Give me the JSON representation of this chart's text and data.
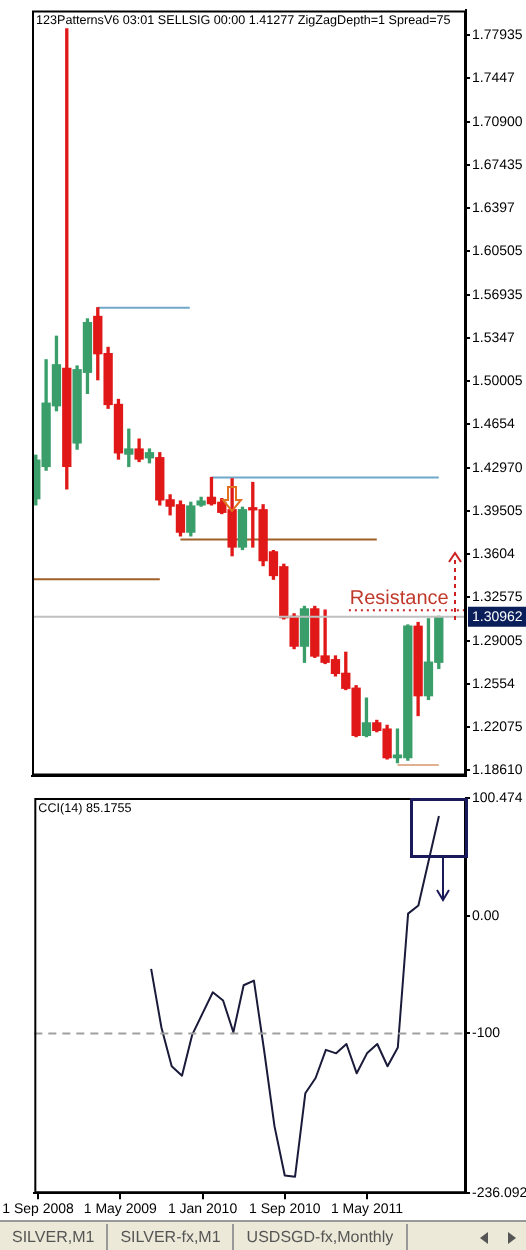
{
  "chart_data": [
    {
      "type": "candlestick",
      "title": "123PatternsV6 03:01 SELLSIG 00:00 1.41277 ZigZagDepth=1 Spread=75",
      "x": [
        "2008-09",
        "2008-10",
        "2008-11",
        "2008-12",
        "2009-01",
        "2009-02",
        "2009-03",
        "2009-04",
        "2009-05",
        "2009-06",
        "2009-07",
        "2009-08",
        "2009-09",
        "2009-10",
        "2009-11",
        "2009-12",
        "2010-01",
        "2010-02",
        "2010-03",
        "2010-04",
        "2010-05",
        "2010-06",
        "2010-07",
        "2010-08",
        "2010-09",
        "2010-10",
        "2010-11",
        "2010-12",
        "2011-01",
        "2011-02",
        "2011-03",
        "2011-04",
        "2011-05",
        "2011-06",
        "2011-07",
        "2011-08",
        "2011-09",
        "2011-10",
        "2011-11",
        "2011-12"
      ],
      "ohlc": [
        [
          1.405,
          1.44,
          1.4,
          1.436
        ],
        [
          1.431,
          1.517,
          1.428,
          1.482
        ],
        [
          1.48,
          1.536,
          1.476,
          1.513
        ],
        [
          1.51,
          1.784,
          1.413,
          1.431
        ],
        [
          1.45,
          1.512,
          1.445,
          1.509
        ],
        [
          1.507,
          1.55,
          1.49,
          1.547
        ],
        [
          1.552,
          1.559,
          1.501,
          1.522
        ],
        [
          1.522,
          1.527,
          1.478,
          1.481
        ],
        [
          1.481,
          1.485,
          1.437,
          1.442
        ],
        [
          1.441,
          1.461,
          1.431,
          1.445
        ],
        [
          1.445,
          1.453,
          1.435,
          1.437
        ],
        [
          1.438,
          1.445,
          1.434,
          1.442
        ],
        [
          1.438,
          1.442,
          1.4,
          1.404
        ],
        [
          1.404,
          1.408,
          1.392,
          1.399
        ],
        [
          1.4,
          1.403,
          1.375,
          1.378
        ],
        [
          1.378,
          1.402,
          1.375,
          1.399
        ],
        [
          1.4,
          1.406,
          1.399,
          1.403
        ],
        [
          1.406,
          1.422,
          1.4,
          1.401
        ],
        [
          1.402,
          1.405,
          1.393,
          1.394
        ],
        [
          1.396,
          1.421,
          1.359,
          1.366
        ],
        [
          1.366,
          1.398,
          1.364,
          1.396
        ],
        [
          1.397,
          1.418,
          1.366,
          1.396
        ],
        [
          1.396,
          1.4,
          1.351,
          1.355
        ],
        [
          1.362,
          1.363,
          1.34,
          1.343
        ],
        [
          1.35,
          1.352,
          1.308,
          1.309
        ],
        [
          1.31,
          1.312,
          1.284,
          1.286
        ],
        [
          1.286,
          1.318,
          1.273,
          1.316
        ],
        [
          1.316,
          1.318,
          1.277,
          1.278
        ],
        [
          1.278,
          1.315,
          1.272,
          1.273
        ],
        [
          1.275,
          1.278,
          1.262,
          1.264
        ],
        [
          1.264,
          1.281,
          1.251,
          1.252
        ],
        [
          1.252,
          1.254,
          1.213,
          1.214
        ],
        [
          1.214,
          1.244,
          1.213,
          1.224
        ],
        [
          1.224,
          1.226,
          1.217,
          1.218
        ],
        [
          1.219,
          1.222,
          1.195,
          1.196
        ],
        [
          1.196,
          1.219,
          1.192,
          1.198
        ],
        [
          1.196,
          1.303,
          1.194,
          1.302
        ],
        [
          1.302,
          1.305,
          1.23,
          1.246
        ],
        [
          1.246,
          1.308,
          1.243,
          1.273
        ],
        [
          1.273,
          1.31,
          1.268,
          1.3096
        ]
      ],
      "colors": [
        "#3a9e6a",
        "#3a9e6a",
        "#3a9e6a",
        "#e01818",
        "#3a9e6a",
        "#3a9e6a",
        "#e01818",
        "#e01818",
        "#e01818",
        "#3a9e6a",
        "#e01818",
        "#3a9e6a",
        "#e01818",
        "#e01818",
        "#e01818",
        "#3a9e6a",
        "#3a9e6a",
        "#e01818",
        "#e01818",
        "#e01818",
        "#3a9e6a",
        "#e01818",
        "#e01818",
        "#e01818",
        "#e01818",
        "#e01818",
        "#3a9e6a",
        "#e01818",
        "#e01818",
        "#e01818",
        "#e01818",
        "#e01818",
        "#3a9e6a",
        "#e01818",
        "#e01818",
        "#3a9e6a",
        "#3a9e6a",
        "#e01818",
        "#3a9e6a",
        "#3a9e6a"
      ],
      "series": [
        {
          "type": "line",
          "x": [
            "2009-03",
            "2009-11-28"
          ],
          "values": [
            1.559,
            1.559
          ],
          "color": "#6fa8c8"
        },
        {
          "type": "line",
          "x": [
            "2010-02",
            "2011-12"
          ],
          "values": [
            1.422,
            1.422
          ],
          "color": "#6fa8c8"
        },
        {
          "type": "line",
          "x": [
            "2009-11",
            "2011-06"
          ],
          "values": [
            1.372,
            1.372
          ],
          "color": "#a0602a"
        },
        {
          "type": "line",
          "x": [
            "2008-08-20",
            "2009-09"
          ],
          "values": [
            1.34,
            1.34
          ],
          "color": "#a0602a"
        },
        {
          "type": "line",
          "x": [
            "2011-08",
            "2011-12"
          ],
          "values": [
            1.19,
            1.19
          ],
          "color": "#e0b090"
        },
        {
          "type": "line",
          "x": [
            "2011-03-10",
            "2012-02-20"
          ],
          "values": [
            1.315,
            1.315
          ],
          "color": "#cc2222",
          "line_style": "dotted"
        }
      ],
      "xlim": [
        "2008-08-20",
        "2012-02-20"
      ],
      "ylim": [
        1.1815,
        1.799
      ],
      "yticks": [
        1.77935,
        1.7447,
        {
          "value": 1.709,
          "label": "1.70900"
        },
        1.67435,
        1.6397,
        1.60505,
        1.56935,
        1.5347,
        1.50005,
        1.4654,
        {
          "value": 1.4297,
          "label": "1.42970"
        },
        1.39505,
        1.3604,
        1.32575,
        1.29005,
        1.2554,
        1.22075,
        {
          "value": 1.1861,
          "label": "1.18610"
        }
      ],
      "ref_lines": [
        {
          "axis": "y",
          "value": 1.30962,
          "label": "1.30962",
          "color": "#c0c0c0"
        }
      ],
      "annotations": [
        {
          "text": "Resistance",
          "x": "2011-08-06",
          "y": 1.315
        }
      ],
      "tick_labels": "y",
      "grid": false,
      "legend": false,
      "marker": "none"
    },
    {
      "type": "line",
      "title": "CCI(14) 85.1755",
      "x": [
        "2009-08",
        "2009-09",
        "2009-10",
        "2009-11",
        "2009-12",
        "2010-01",
        "2010-02",
        "2010-03",
        "2010-04",
        "2010-05",
        "2010-06",
        "2010-07",
        "2010-08",
        "2010-09",
        "2010-10",
        "2010-11",
        "2010-12",
        "2011-01",
        "2011-02",
        "2011-03",
        "2011-04",
        "2011-05",
        "2011-06",
        "2011-07",
        "2011-08",
        "2011-09",
        "2011-10",
        "2011-11",
        "2011-12"
      ],
      "values": [
        -45,
        -95,
        -128,
        -136,
        -101,
        -83,
        -65,
        -72,
        -99,
        -59,
        -55,
        -115,
        -179,
        -221,
        -222,
        -151,
        -138,
        -114,
        -117,
        -109,
        -134,
        -117,
        -109,
        -128,
        -112,
        2,
        9,
        47,
        85.1755
      ],
      "color": "#1a1a3a",
      "xlim": [
        "2008-08-20",
        "2012-02-20"
      ],
      "xticks": [
        {
          "value": "2008-09-01",
          "label": "1 Sep 2008"
        },
        {
          "value": "2009-05-01",
          "label": "1 May 2009"
        },
        {
          "value": "2010-01-01",
          "label": "1 Jan 2010"
        },
        {
          "value": "2010-09-01",
          "label": "1 Sep 2010"
        },
        {
          "value": "2011-05-01",
          "label": "1 May 2011"
        }
      ],
      "ylim": [
        -236.092,
        100.474
      ],
      "yticks": [
        100.474,
        {
          "value": 0,
          "label": "0.00"
        },
        -100,
        -236.092
      ],
      "ref_lines": [
        {
          "axis": "y",
          "value": -100,
          "color": "#a0a0a0",
          "line_style": "dashed"
        }
      ],
      "annotations": [
        "SILVER,M1",
        "SILVER-fx,M1",
        "USDSGD-fx,Monthly"
      ],
      "grid": false,
      "legend": false,
      "marker": "none"
    }
  ]
}
